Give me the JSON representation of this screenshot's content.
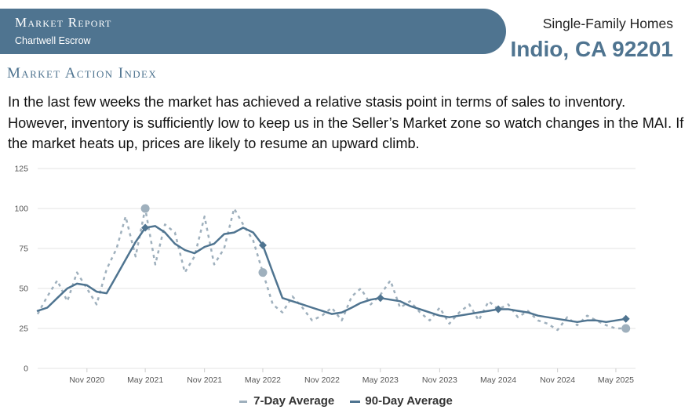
{
  "header": {
    "report_title": "Market Report",
    "company": "Chartwell Escrow",
    "property_type": "Single-Family Homes",
    "location": "Indio, CA 92201"
  },
  "section": {
    "title": "Market Action Index",
    "summary": "In the last few weeks the market has achieved a relative stasis point in terms of sales to inventory. However, inventory is sufficiently low to keep us in the Seller’s Market zone so watch changes in the MAI. If the market heats up, prices are likely to resume an upward climb."
  },
  "colors": {
    "banner": "#4f7490",
    "ninety_day": "#4f7490",
    "seven_day": "#9fb0bd",
    "grid": "#e3e3e3"
  },
  "chart_data": {
    "type": "line",
    "ylim": [
      0,
      125
    ],
    "yticks": [
      0,
      25,
      50,
      75,
      100,
      125
    ],
    "xlim": [
      "2020-06-01",
      "2025-07-01"
    ],
    "xticks": [
      {
        "date": "2020-11-01",
        "label": "Nov 2020"
      },
      {
        "date": "2021-05-01",
        "label": "May 2021"
      },
      {
        "date": "2021-11-01",
        "label": "Nov 2021"
      },
      {
        "date": "2022-05-01",
        "label": "May 2022"
      },
      {
        "date": "2022-11-01",
        "label": "Nov 2022"
      },
      {
        "date": "2023-05-01",
        "label": "May 2023"
      },
      {
        "date": "2023-11-01",
        "label": "Nov 2023"
      },
      {
        "date": "2024-05-01",
        "label": "May 2024"
      },
      {
        "date": "2024-11-01",
        "label": "Nov 2024"
      },
      {
        "date": "2025-05-01",
        "label": "May 2025"
      }
    ],
    "grid": true,
    "legend_position": "bottom-center",
    "series": [
      {
        "name": "90-Day Average",
        "style": "solid",
        "x": [
          "2020-06-01",
          "2020-07-01",
          "2020-08-01",
          "2020-09-01",
          "2020-10-01",
          "2020-11-01",
          "2020-12-01",
          "2021-01-01",
          "2021-02-01",
          "2021-03-01",
          "2021-04-01",
          "2021-05-01",
          "2021-06-01",
          "2021-07-01",
          "2021-08-01",
          "2021-09-01",
          "2021-10-01",
          "2021-11-01",
          "2021-12-01",
          "2022-01-01",
          "2022-02-01",
          "2022-03-01",
          "2022-04-01",
          "2022-05-01",
          "2022-06-01",
          "2022-07-01",
          "2022-08-01",
          "2022-09-01",
          "2022-10-01",
          "2022-11-01",
          "2022-12-01",
          "2023-01-01",
          "2023-02-01",
          "2023-03-01",
          "2023-04-01",
          "2023-05-01",
          "2023-06-01",
          "2023-07-01",
          "2023-08-01",
          "2023-09-01",
          "2023-10-01",
          "2023-11-01",
          "2023-12-01",
          "2024-01-01",
          "2024-02-01",
          "2024-03-01",
          "2024-04-01",
          "2024-05-01",
          "2024-06-01",
          "2024-07-01",
          "2024-08-01",
          "2024-09-01",
          "2024-10-01",
          "2024-11-01",
          "2024-12-01",
          "2025-01-01",
          "2025-02-01",
          "2025-03-01",
          "2025-04-01",
          "2025-05-01",
          "2025-06-01"
        ],
        "y": [
          36,
          38,
          44,
          50,
          53,
          52,
          48,
          47,
          58,
          68,
          79,
          88,
          89,
          85,
          78,
          74,
          72,
          76,
          78,
          84,
          85,
          88,
          85,
          77,
          60,
          44,
          42,
          40,
          38,
          36,
          34,
          35,
          38,
          41,
          43,
          44,
          43,
          42,
          39,
          37,
          35,
          33,
          32,
          33,
          34,
          35,
          36,
          37,
          37,
          36,
          35,
          33,
          32,
          31,
          30,
          29,
          30,
          30,
          29,
          30,
          31
        ]
      },
      {
        "name": "7-Day Average",
        "style": "dashed",
        "x": [
          "2020-06-01",
          "2020-07-01",
          "2020-08-01",
          "2020-09-01",
          "2020-10-01",
          "2020-11-01",
          "2020-12-01",
          "2021-01-01",
          "2021-02-01",
          "2021-03-01",
          "2021-04-01",
          "2021-05-01",
          "2021-06-01",
          "2021-07-01",
          "2021-08-01",
          "2021-09-01",
          "2021-10-01",
          "2021-11-01",
          "2021-12-01",
          "2022-01-01",
          "2022-02-01",
          "2022-03-01",
          "2022-04-01",
          "2022-05-01",
          "2022-06-01",
          "2022-07-01",
          "2022-08-01",
          "2022-09-01",
          "2022-10-01",
          "2022-11-01",
          "2022-12-01",
          "2023-01-01",
          "2023-02-01",
          "2023-03-01",
          "2023-04-01",
          "2023-05-01",
          "2023-06-01",
          "2023-07-01",
          "2023-08-01",
          "2023-09-01",
          "2023-10-01",
          "2023-11-01",
          "2023-12-01",
          "2024-01-01",
          "2024-02-01",
          "2024-03-01",
          "2024-04-01",
          "2024-05-01",
          "2024-06-01",
          "2024-07-01",
          "2024-08-01",
          "2024-09-01",
          "2024-10-01",
          "2024-11-01",
          "2024-12-01",
          "2025-01-01",
          "2025-02-01",
          "2025-03-01",
          "2025-04-01",
          "2025-05-01",
          "2025-06-01"
        ],
        "y": [
          34,
          45,
          55,
          42,
          60,
          50,
          40,
          62,
          75,
          95,
          70,
          100,
          65,
          90,
          85,
          60,
          70,
          95,
          65,
          75,
          100,
          90,
          80,
          60,
          40,
          35,
          45,
          38,
          30,
          33,
          38,
          30,
          45,
          50,
          40,
          46,
          55,
          38,
          42,
          35,
          30,
          38,
          28,
          35,
          40,
          30,
          42,
          37,
          40,
          32,
          36,
          30,
          28,
          24,
          32,
          27,
          33,
          30,
          27,
          25,
          25
        ]
      }
    ],
    "markers": {
      "ninety_day": [
        {
          "x": "2021-05-01",
          "y": 88
        },
        {
          "x": "2022-05-01",
          "y": 77
        },
        {
          "x": "2023-05-01",
          "y": 44
        },
        {
          "x": "2024-05-01",
          "y": 37
        },
        {
          "x": "2025-06-01",
          "y": 31
        }
      ],
      "seven_day": [
        {
          "x": "2021-05-01",
          "y": 100
        },
        {
          "x": "2022-05-01",
          "y": 60
        },
        {
          "x": "2025-06-01",
          "y": 25
        }
      ]
    }
  }
}
